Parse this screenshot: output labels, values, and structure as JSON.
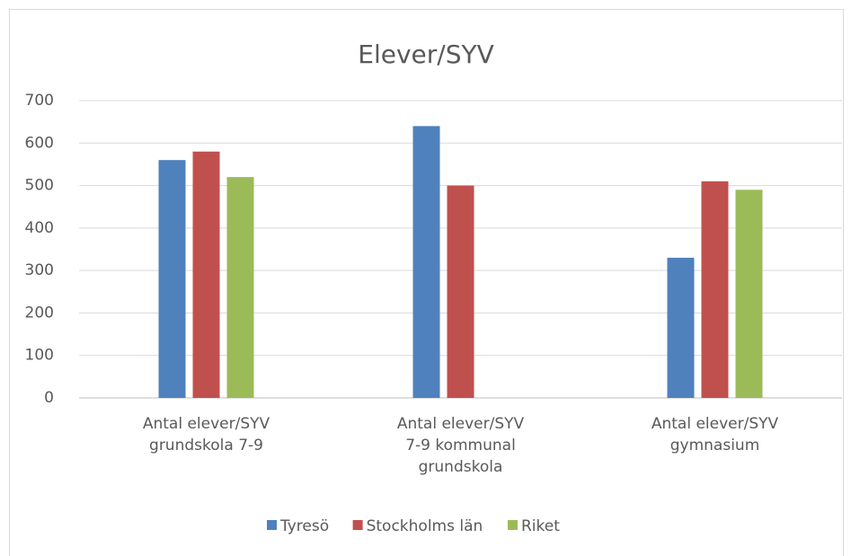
{
  "chart_data": {
    "type": "bar",
    "title": "Elever/SYV",
    "categories": [
      "Antal elever/SYV\ngrundskola 7-9",
      "Antal elever/SYV\n7-9 kommunal\ngrundskola",
      "Antal elever/SYV\ngymnasium"
    ],
    "series": [
      {
        "name": "Tyresö",
        "color": "#4f81bd",
        "values": [
          560,
          640,
          330
        ]
      },
      {
        "name": "Stockholms län",
        "color": "#c0504d",
        "values": [
          580,
          500,
          510
        ]
      },
      {
        "name": "Riket",
        "color": "#9bbb59",
        "values": [
          520,
          null,
          490
        ]
      }
    ],
    "ylim": [
      0,
      700
    ],
    "yticks": [
      0,
      100,
      200,
      300,
      400,
      500,
      600,
      700
    ],
    "grid": true,
    "legend": "bottom"
  }
}
